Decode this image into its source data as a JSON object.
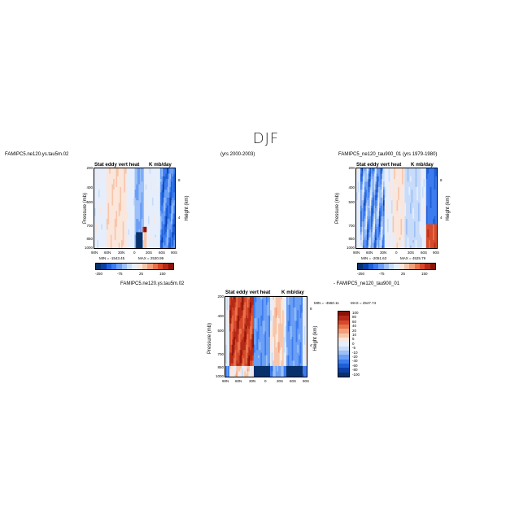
{
  "season": "DJF",
  "panels": [
    {
      "id": "p1",
      "case_title": "FAMIPC5.ne120.ys.tau5m.02",
      "years": "(yrs 2000-2003)",
      "var_title": "Stat eddy vert heat",
      "units": "K mb/day",
      "ylabel": "Pressure (mb)",
      "ylabel_right": "Height (km)",
      "yticks": [
        "200",
        "400",
        "500",
        "700",
        "850",
        "1000"
      ],
      "yticks_right": [
        "8",
        "4"
      ],
      "xticks": [
        "90N",
        "60N",
        "30N",
        "0",
        "30S",
        "60S",
        "90S"
      ],
      "min_label": "MIN = -1543.45",
      "max_label": "MAX = 2530.99",
      "colorbar_ticks": [
        "-250",
        "-75",
        "25",
        "150"
      ]
    },
    {
      "id": "p2",
      "case_title": "FAMIPC5_ne120_tau900_01 (yrs 1979-1980)",
      "var_title": "Stat eddy vert heat",
      "units": "K mb/day",
      "ylabel": "Pressure (mb)",
      "ylabel_right": "Height (km)",
      "yticks": [
        "200",
        "400",
        "500",
        "700",
        "850",
        "1000"
      ],
      "yticks_right": [
        "8",
        "4"
      ],
      "xticks": [
        "90N",
        "60N",
        "30N",
        "0",
        "30S",
        "60S",
        "90S"
      ],
      "min_label": "MIN = -2051.63",
      "max_label": "MAX = 4525.79",
      "colorbar_ticks": [
        "-250",
        "-75",
        "25",
        "150"
      ]
    },
    {
      "id": "p3",
      "case_title": "FAMIPC5.ne120.ys.tau5m.02",
      "diff_title": "- FAMIPC5_ne120_tau900_01",
      "var_title": "Stat eddy vert heat",
      "units": "K mb/day",
      "ylabel": "Pressure (mb)",
      "ylabel_right": "Height (km)",
      "yticks": [
        "200",
        "400",
        "500",
        "700",
        "850",
        "1000"
      ],
      "yticks_right": [
        "8",
        "4"
      ],
      "xticks": [
        "90N",
        "60N",
        "30N",
        "0",
        "30S",
        "60S",
        "90S"
      ],
      "min_label": "MIN = -4560.11",
      "max_label": "MAX = 2547.74",
      "colorbar_ticks": [
        "100",
        "80",
        "60",
        "40",
        "20",
        "10",
        "5",
        "0",
        "-5",
        "-10",
        "-20",
        "-40",
        "-60",
        "-80",
        "-100"
      ]
    }
  ],
  "colors": {
    "diverging": [
      "#08306b",
      "#0b3fa8",
      "#1f5fd6",
      "#3c7cf0",
      "#6a9ff5",
      "#9cc0f7",
      "#c8dcfa",
      "#e6eefc",
      "#fbe6dc",
      "#f7c6aa",
      "#f2a07a",
      "#e8734a",
      "#d6492a",
      "#b52a17",
      "#8c1108"
    ]
  },
  "chart_data": [
    {
      "type": "heatmap",
      "title": "Stat eddy vert heat",
      "xlabel": "",
      "ylabel": "Pressure (mb)",
      "x": [
        "90N",
        "60N",
        "30N",
        "0",
        "30S",
        "60S",
        "90S"
      ],
      "y": [
        "200",
        "400",
        "500",
        "700",
        "850",
        "1000"
      ],
      "min": -1543.45,
      "max": 2530.99
    },
    {
      "type": "heatmap",
      "title": "Stat eddy vert heat",
      "xlabel": "",
      "ylabel": "Pressure (mb)",
      "x": [
        "90N",
        "60N",
        "30N",
        "0",
        "30S",
        "60S",
        "90S"
      ],
      "y": [
        "200",
        "400",
        "500",
        "700",
        "850",
        "1000"
      ],
      "min": -2051.63,
      "max": 4525.79
    },
    {
      "type": "heatmap",
      "title": "Stat eddy vert heat",
      "xlabel": "",
      "ylabel": "Pressure (mb)",
      "x": [
        "90N",
        "60N",
        "30N",
        "0",
        "30S",
        "60S",
        "90S"
      ],
      "y": [
        "200",
        "400",
        "500",
        "700",
        "850",
        "1000"
      ],
      "min": -4560.11,
      "max": 2547.74
    }
  ]
}
